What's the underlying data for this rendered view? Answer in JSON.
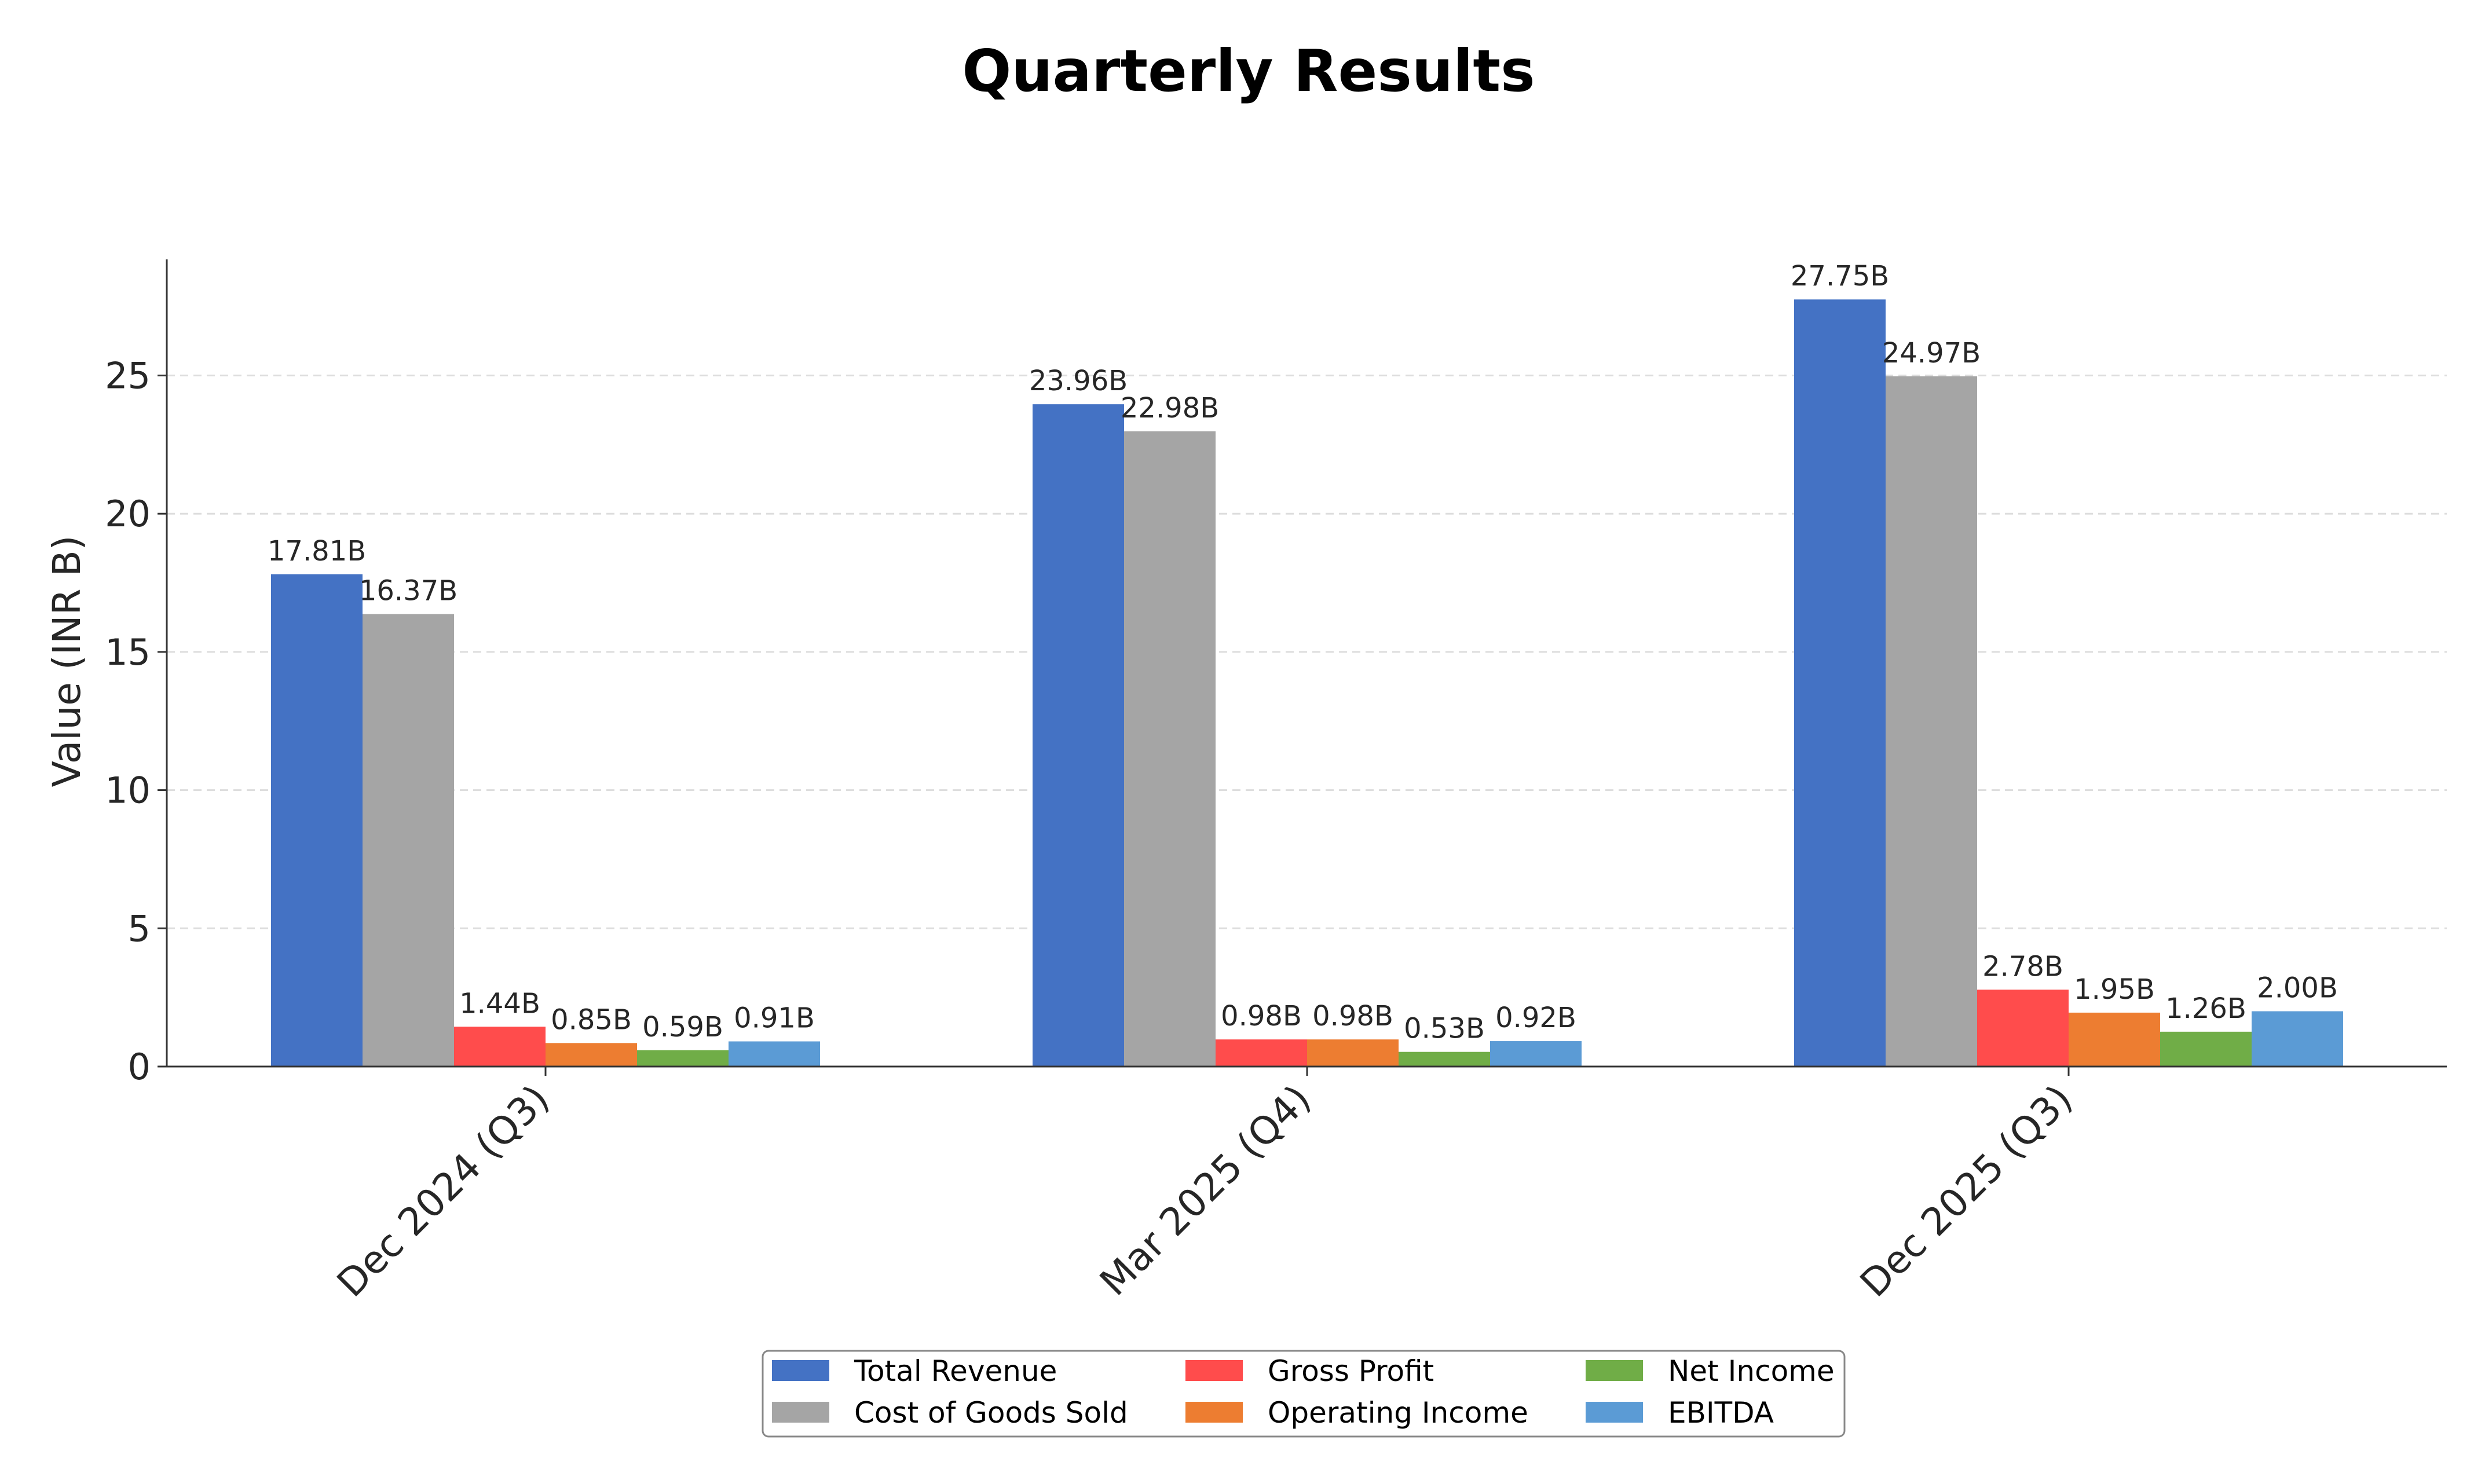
{
  "chart_data": {
    "type": "bar",
    "title": "Quarterly Results",
    "ylabel": "Value (INR B)",
    "xlabel": "",
    "categories": [
      "Dec 2024 (Q3)",
      "Mar 2025 (Q4)",
      "Dec 2025 (Q3)"
    ],
    "ylim": [
      0,
      29.2
    ],
    "yticks": [
      0,
      5,
      10,
      15,
      20,
      25
    ],
    "grid": "y-dashed",
    "legend_position": "bottom-center",
    "series": [
      {
        "name": "Total Revenue",
        "color": "#4472c4",
        "values": [
          17.81,
          23.96,
          27.75
        ],
        "labels": [
          "17.81B",
          "23.96B",
          "27.75B"
        ]
      },
      {
        "name": "Cost of Goods Sold",
        "color": "#a5a5a5",
        "values": [
          16.37,
          22.98,
          24.97
        ],
        "labels": [
          "16.37B",
          "22.98B",
          "24.97B"
        ]
      },
      {
        "name": "Gross Profit",
        "color": "#ff4c4c",
        "values": [
          1.44,
          0.98,
          2.78
        ],
        "labels": [
          "1.44B",
          "0.98B",
          "2.78B"
        ]
      },
      {
        "name": "Operating Income",
        "color": "#ed7d31",
        "values": [
          0.85,
          0.98,
          1.95
        ],
        "labels": [
          "0.85B",
          "0.98B",
          "1.95B"
        ]
      },
      {
        "name": "Net Income",
        "color": "#70ad47",
        "values": [
          0.59,
          0.53,
          1.26
        ],
        "labels": [
          "0.59B",
          "0.53B",
          "1.26B"
        ]
      },
      {
        "name": "EBITDA",
        "color": "#5b9bd5",
        "values": [
          0.91,
          0.92,
          2.0
        ],
        "labels": [
          "0.91B",
          "0.92B",
          "2.00B"
        ]
      }
    ]
  }
}
